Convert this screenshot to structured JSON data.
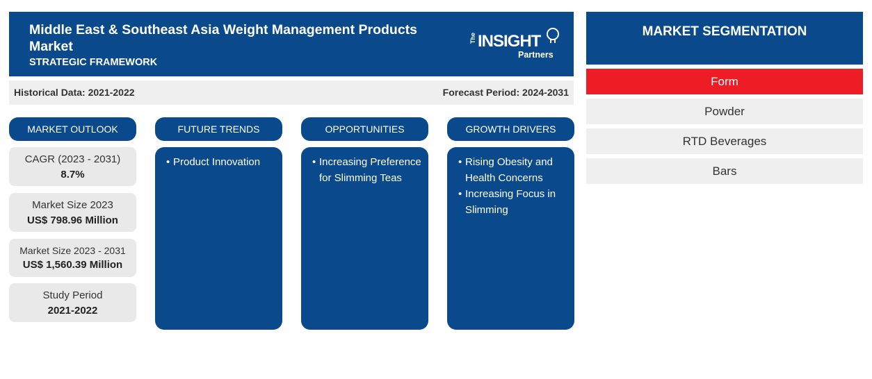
{
  "header": {
    "title": "Middle East & Southeast Asia Weight Management Products Market",
    "subtitle": "STRATEGIC FRAMEWORK",
    "logo_the": "The",
    "logo_insight": "INSIGHT",
    "logo_partners": "Partners"
  },
  "period": {
    "historical": "Historical Data: 2021-2022",
    "forecast": "Forecast Period: 2024-2031"
  },
  "columns": {
    "outlook": "MARKET OUTLOOK",
    "trends": "FUTURE TRENDS",
    "opportunities": "OPPORTUNITIES",
    "drivers": "GROWTH DRIVERS"
  },
  "outlook": [
    {
      "label": "CAGR (2023 - 2031)",
      "value": "8.7%"
    },
    {
      "label": "Market Size 2023",
      "value": "US$ 798.96 Million"
    },
    {
      "label": "Market Size 2023 - 2031",
      "value": "US$ 1,560.39 Million"
    },
    {
      "label": "Study Period",
      "value": "2021-2022"
    }
  ],
  "trends": [
    "Product Innovation"
  ],
  "opportunities": [
    "Increasing Preference for Slimming Teas"
  ],
  "drivers": [
    "Rising Obesity and Health Concerns",
    "Increasing Focus in Slimming"
  ],
  "segmentation": {
    "title": "MARKET SEGMENTATION",
    "category": "Form",
    "items": [
      "Powder",
      "RTD Beverages",
      "Bars"
    ]
  },
  "colors": {
    "primary": "#0a4a8c",
    "accent": "#ee1c25",
    "panel": "#efefef"
  }
}
